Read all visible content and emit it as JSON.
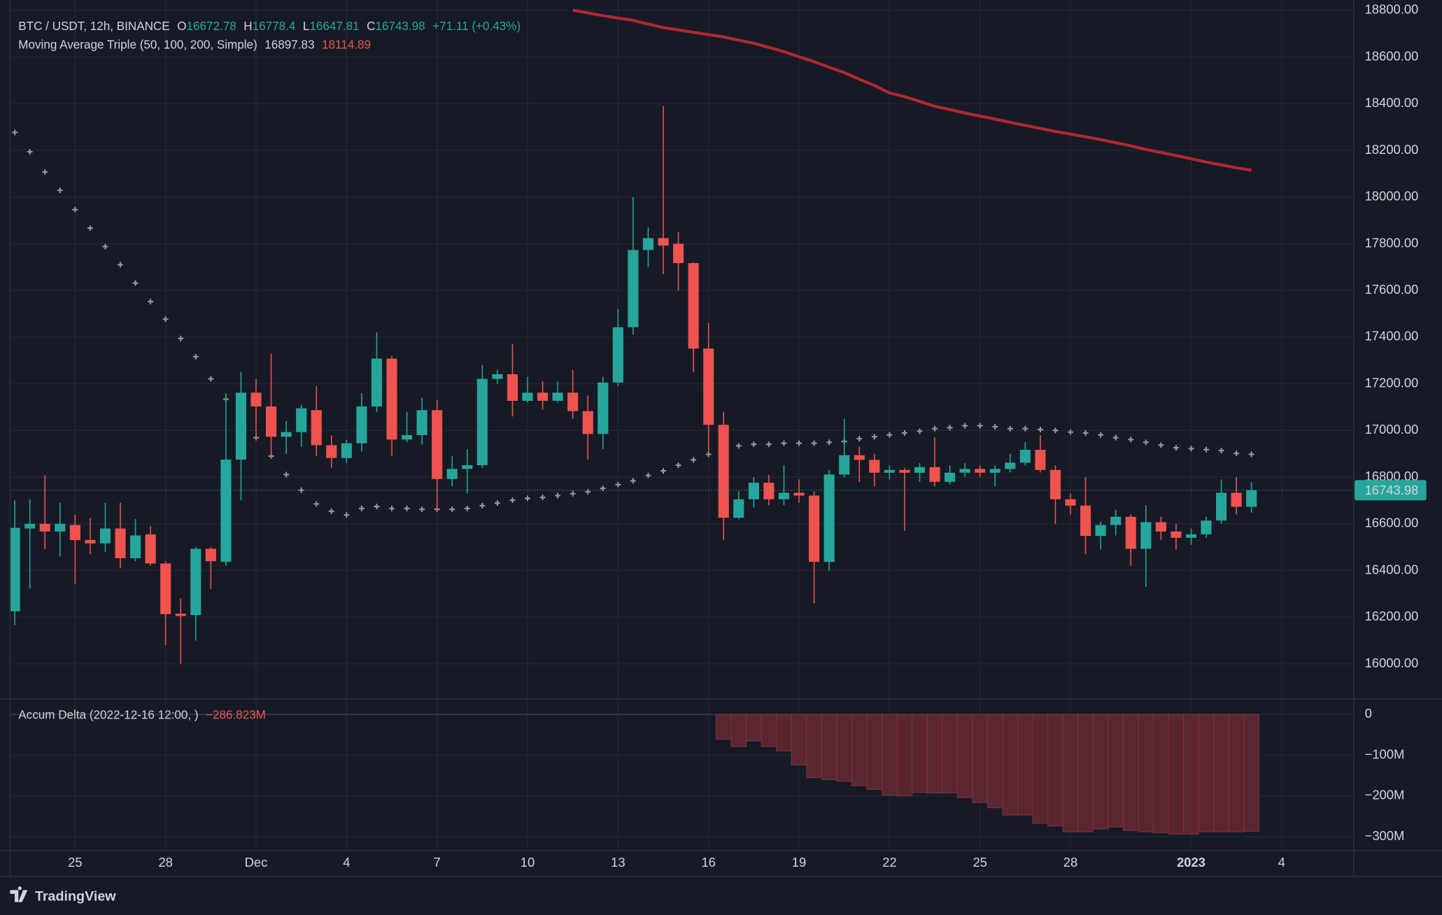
{
  "chart_data": {
    "type": "candlestick",
    "title": "BTC / USDT, 12h, BINANCE",
    "ohlc_letters": [
      "O",
      "H",
      "L",
      "C"
    ],
    "change_label": "+71.11 (+0.43%)",
    "up_color": "#26a69a",
    "down_color": "#ef5350",
    "grid": true,
    "xlim": [
      -0.98,
      88.78
    ],
    "xticks": [
      {
        "value": 4,
        "label": "25"
      },
      {
        "value": 10,
        "label": "28"
      },
      {
        "value": 16,
        "label": "Dec"
      },
      {
        "value": 22,
        "label": "4"
      },
      {
        "value": 28,
        "label": "7"
      },
      {
        "value": 34,
        "label": "10"
      },
      {
        "value": 40,
        "label": "13"
      },
      {
        "value": 46,
        "label": "16"
      },
      {
        "value": 52,
        "label": "19"
      },
      {
        "value": 58,
        "label": "22"
      },
      {
        "value": 64,
        "label": "25"
      },
      {
        "value": 70,
        "label": "28"
      },
      {
        "value": 78,
        "label": "2023",
        "bold": true
      },
      {
        "value": 84,
        "label": "4"
      }
    ],
    "ylim": [
      15850,
      18844
    ],
    "yticks": [
      {
        "value": 16000,
        "label": "16000.00"
      },
      {
        "value": 16200,
        "label": "16200.00"
      },
      {
        "value": 16400,
        "label": "16400.00"
      },
      {
        "value": 16600,
        "label": "16600.00"
      },
      {
        "value": 16800,
        "label": "16800.00"
      },
      {
        "value": 17000,
        "label": "17000.00"
      },
      {
        "value": 17200,
        "label": "17200.00"
      },
      {
        "value": 17400,
        "label": "17400.00"
      },
      {
        "value": 17600,
        "label": "17600.00"
      },
      {
        "value": 17800,
        "label": "17800.00"
      },
      {
        "value": 18000,
        "label": "18000.00"
      },
      {
        "value": 18200,
        "label": "18200.00"
      },
      {
        "value": 18400,
        "label": "18400.00"
      },
      {
        "value": 18600,
        "label": "18600.00"
      },
      {
        "value": 18800,
        "label": "18800.00"
      }
    ],
    "open": [
      16225,
      16580,
      16600,
      16567,
      16595,
      16531,
      16516,
      16580,
      16453,
      16555,
      16430,
      16215,
      16209,
      16493,
      16437,
      16875,
      17162,
      17103,
      16973,
      16993,
      17087,
      16937,
      16882,
      16945,
      17103,
      17308,
      16961,
      16980,
      17087,
      16792,
      16835,
      16851,
      17221,
      17241,
      17127,
      17162,
      17127,
      17162,
      17083,
      16985,
      17205,
      17442,
      17773,
      17824,
      17800,
      17717,
      17351,
      17024,
      16626,
      16705,
      16776,
      16705,
      16733,
      16721,
      16437,
      16811,
      16894,
      16874,
      16819,
      16831,
      16819,
      16843,
      16780,
      16819,
      16835,
      16819,
      16835,
      16862,
      16917,
      16831,
      16705,
      16678,
      16548,
      16595,
      16630,
      16493,
      16607,
      16567,
      16540,
      16555,
      16614,
      16733,
      16672.78
    ],
    "high": [
      16700,
      16705,
      16808,
      16690,
      16638,
      16625,
      16690,
      16690,
      16620,
      16590,
      16440,
      16280,
      16500,
      16500,
      17160,
      17250,
      17220,
      17330,
      17040,
      17110,
      17190,
      16980,
      16960,
      17160,
      17420,
      17320,
      17080,
      17140,
      17130,
      16890,
      16920,
      17280,
      17260,
      17370,
      17230,
      17210,
      17210,
      17260,
      17150,
      17230,
      17520,
      18000,
      17870,
      18390,
      17850,
      17720,
      17460,
      17080,
      16740,
      16800,
      16810,
      16850,
      16790,
      16740,
      16830,
      17050,
      16930,
      16900,
      16850,
      16840,
      16860,
      16970,
      16850,
      16860,
      16850,
      16850,
      16900,
      16950,
      16980,
      16850,
      16730,
      16800,
      16610,
      16660,
      16640,
      16680,
      16630,
      16600,
      16580,
      16630,
      16790,
      16800,
      16778.4
    ],
    "low": [
      16165,
      16323,
      16492,
      16460,
      16343,
      16470,
      16480,
      16410,
      16440,
      16420,
      16080,
      16000,
      16100,
      16320,
      16420,
      16700,
      16960,
      16880,
      16900,
      16930,
      16890,
      16840,
      16860,
      16910,
      17080,
      16890,
      16950,
      16940,
      16650,
      16760,
      16730,
      16840,
      17200,
      17060,
      17120,
      17090,
      17120,
      17050,
      16875,
      16920,
      17190,
      17410,
      17700,
      17670,
      17600,
      17250,
      16900,
      16530,
      16620,
      16670,
      16680,
      16680,
      16690,
      16260,
      16400,
      16800,
      16780,
      16760,
      16790,
      16570,
      16780,
      16760,
      16770,
      16800,
      16800,
      16760,
      16820,
      16850,
      16820,
      16600,
      16640,
      16470,
      16490,
      16550,
      16420,
      16330,
      16530,
      16490,
      16510,
      16540,
      16600,
      16640,
      16647.81
    ],
    "close": [
      16583,
      16600,
      16567,
      16600,
      16530,
      16516,
      16580,
      16453,
      16550,
      16430,
      16213,
      16205,
      16493,
      16440,
      16875,
      17162,
      17103,
      16973,
      16993,
      17095,
      16937,
      16882,
      16945,
      17103,
      17308,
      16961,
      16980,
      17087,
      16792,
      16835,
      16851,
      17221,
      17241,
      17127,
      17162,
      17127,
      17162,
      17083,
      16985,
      17205,
      17442,
      17773,
      17824,
      17792,
      17717,
      17351,
      17024,
      16626,
      16705,
      16776,
      16705,
      16733,
      16721,
      16437,
      16811,
      16894,
      16874,
      16819,
      16831,
      16819,
      16843,
      16780,
      16819,
      16835,
      16819,
      16835,
      16862,
      16917,
      16831,
      16705,
      16678,
      16548,
      16595,
      16630,
      16493,
      16607,
      16567,
      16540,
      16555,
      16614,
      16733,
      16673,
      16743.98
    ],
    "ma_name": "Moving Average Triple (50, 100, 200, Simple)",
    "ma_series": [
      {
        "style": "cross",
        "color": "#9598a1",
        "values": [
          18277,
          18194,
          18107,
          18029,
          17946,
          17867,
          17788,
          17710,
          17631,
          17552,
          17477,
          17394,
          17316,
          17221,
          17134,
          17048,
          16969,
          16890,
          16811,
          16744,
          16685,
          16654,
          16638,
          16666,
          16674,
          16666,
          16666,
          16662,
          16662,
          16662,
          16666,
          16678,
          16689,
          16701,
          16709,
          16713,
          16721,
          16729,
          16737,
          16752,
          16768,
          16784,
          16807,
          16827,
          16851,
          16874,
          16898,
          16914,
          16934,
          16941,
          16941,
          16945,
          16945,
          16945,
          16949,
          16953,
          16965,
          16973,
          16981,
          16989,
          16997,
          17008,
          17012,
          17020,
          17020,
          17016,
          17008,
          17008,
          17004,
          17000,
          16993,
          16989,
          16981,
          16969,
          16961,
          16949,
          16937,
          16926,
          16922,
          16918,
          16914,
          16902,
          16897.83
        ]
      },
      {
        "style": "line",
        "color": "#b22833",
        "label_color": "#ef5350",
        "values": [
          null,
          null,
          null,
          null,
          null,
          null,
          null,
          null,
          null,
          null,
          null,
          null,
          null,
          null,
          null,
          null,
          null,
          null,
          null,
          null,
          null,
          null,
          null,
          null,
          null,
          null,
          null,
          null,
          null,
          null,
          null,
          null,
          null,
          null,
          null,
          null,
          null,
          18801,
          18789,
          18777,
          18767,
          18757,
          18741,
          18726,
          18716,
          18706,
          18696,
          18686,
          18672,
          18659,
          18641,
          18623,
          18601,
          18580,
          18556,
          18533,
          18505,
          18478,
          18446,
          18430,
          18410,
          18389,
          18375,
          18360,
          18347,
          18334,
          18320,
          18307,
          18294,
          18281,
          18270,
          18258,
          18246,
          18233,
          18219,
          18204,
          18191,
          18178,
          18164,
          18150,
          18138,
          18125,
          18114.89
        ]
      }
    ],
    "accum": {
      "type": "bar",
      "name": "Accum Delta (2022-12-16 12:00, )",
      "color": "#5a2630",
      "edge_color": "#7a3440",
      "label_color": "#ef5350",
      "ylim": [
        -334,
        38
      ],
      "yticks": [
        0,
        {
          "value": -100,
          "label": "−100M"
        },
        {
          "value": -200,
          "label": "−200M"
        },
        {
          "value": -300,
          "label": "−300M"
        }
      ],
      "values": [
        null,
        null,
        null,
        null,
        null,
        null,
        null,
        null,
        null,
        null,
        null,
        null,
        null,
        null,
        null,
        null,
        null,
        null,
        null,
        null,
        null,
        null,
        null,
        null,
        null,
        null,
        null,
        null,
        null,
        null,
        null,
        null,
        null,
        null,
        null,
        null,
        null,
        null,
        null,
        null,
        null,
        null,
        null,
        null,
        null,
        null,
        null,
        -61,
        -79,
        -65,
        -79,
        -90,
        -124,
        -155,
        -160,
        -164,
        -175,
        -184,
        -198,
        -200,
        -191,
        -193,
        -193,
        -204,
        -216,
        -229,
        -247,
        -247,
        -267,
        -274,
        -288,
        -288,
        -281,
        -276,
        -285,
        -288,
        -290,
        -294,
        -294,
        -288,
        -288,
        -288,
        -286.823
      ],
      "value_labels": [
        null,
        null,
        null,
        null,
        null,
        null,
        null,
        null,
        null,
        null,
        null,
        null,
        null,
        null,
        null,
        null,
        null,
        null,
        null,
        null,
        null,
        null,
        null,
        null,
        null,
        null,
        null,
        null,
        null,
        null,
        null,
        null,
        null,
        null,
        null,
        null,
        null,
        null,
        null,
        null,
        null,
        null,
        null,
        null,
        null,
        null,
        null,
        null,
        null,
        null,
        null,
        null,
        null,
        null,
        null,
        null,
        null,
        null,
        null,
        null,
        null,
        null,
        null,
        null,
        null,
        null,
        null,
        null,
        null,
        null,
        null,
        null,
        null,
        null,
        null,
        null,
        null,
        null,
        null,
        null,
        null,
        null,
        "−286.823M"
      ]
    },
    "brand": "TradingView"
  }
}
